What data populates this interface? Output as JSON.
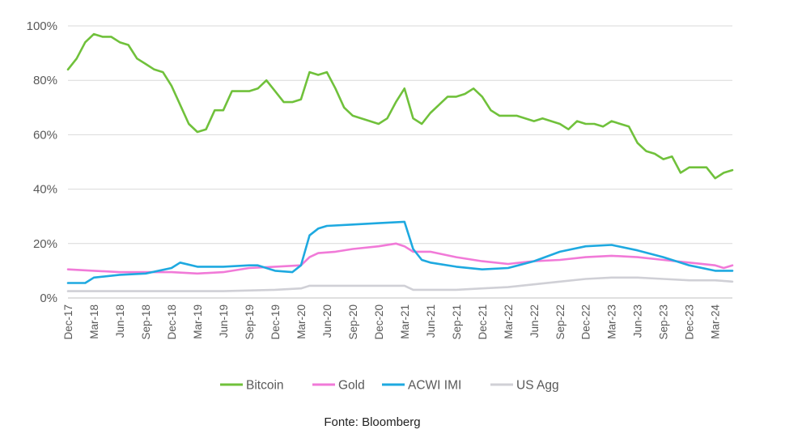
{
  "source_note": "Fonte: Bloomberg",
  "colors": {
    "Bitcoin": "#70c13b",
    "Gold": "#f17ad8",
    "ACWI IMI": "#1ea9e0",
    "US Agg": "#d0d0d6",
    "grid": "#d9d9d9",
    "text": "#595959"
  },
  "chart_data": {
    "type": "line",
    "title": "",
    "xlabel": "",
    "ylabel": "",
    "ylim": [
      0,
      100
    ],
    "y_ticks": [
      0,
      20,
      40,
      60,
      80,
      100
    ],
    "y_tick_labels": [
      "0%",
      "20%",
      "40%",
      "60%",
      "80%",
      "100%"
    ],
    "x_range": [
      "2017-12",
      "2024-05"
    ],
    "x_tick_labels": [
      "Dec-17",
      "Mar-18",
      "Jun-18",
      "Sep-18",
      "Dec-18",
      "Mar-19",
      "Jun-19",
      "Sep-19",
      "Dec-19",
      "Mar-20",
      "Jun-20",
      "Sep-20",
      "Dec-20",
      "Mar-21",
      "Jun-21",
      "Sep-21",
      "Dec-21",
      "Mar-22",
      "Jun-22",
      "Sep-22",
      "Dec-22",
      "Mar-23",
      "Jun-23",
      "Sep-23",
      "Dec-23",
      "Mar-24"
    ],
    "grid": "horizontal",
    "legend_position": "bottom",
    "series": [
      {
        "name": "Bitcoin",
        "points": [
          [
            "2017-12",
            84
          ],
          [
            "2018-01",
            88
          ],
          [
            "2018-02",
            94
          ],
          [
            "2018-03",
            97
          ],
          [
            "2018-04",
            96
          ],
          [
            "2018-05",
            96
          ],
          [
            "2018-06",
            94
          ],
          [
            "2018-07",
            93
          ],
          [
            "2018-08",
            88
          ],
          [
            "2018-09",
            86
          ],
          [
            "2018-10",
            84
          ],
          [
            "2018-11",
            83
          ],
          [
            "2018-12",
            78
          ],
          [
            "2019-01",
            71
          ],
          [
            "2019-02",
            64
          ],
          [
            "2019-03",
            61
          ],
          [
            "2019-04",
            62
          ],
          [
            "2019-05",
            69
          ],
          [
            "2019-06",
            69
          ],
          [
            "2019-07",
            76
          ],
          [
            "2019-08",
            76
          ],
          [
            "2019-09",
            76
          ],
          [
            "2019-10",
            77
          ],
          [
            "2019-11",
            80
          ],
          [
            "2019-12",
            76
          ],
          [
            "2020-01",
            72
          ],
          [
            "2020-02",
            72
          ],
          [
            "2020-03",
            73
          ],
          [
            "2020-04",
            83
          ],
          [
            "2020-05",
            82
          ],
          [
            "2020-06",
            83
          ],
          [
            "2020-07",
            77
          ],
          [
            "2020-08",
            70
          ],
          [
            "2020-09",
            67
          ],
          [
            "2020-10",
            66
          ],
          [
            "2020-11",
            65
          ],
          [
            "2020-12",
            64
          ],
          [
            "2021-01",
            66
          ],
          [
            "2021-02",
            72
          ],
          [
            "2021-03",
            77
          ],
          [
            "2021-04",
            66
          ],
          [
            "2021-05",
            64
          ],
          [
            "2021-06",
            68
          ],
          [
            "2021-07",
            71
          ],
          [
            "2021-08",
            74
          ],
          [
            "2021-09",
            74
          ],
          [
            "2021-10",
            75
          ],
          [
            "2021-11",
            77
          ],
          [
            "2021-12",
            74
          ],
          [
            "2022-01",
            69
          ],
          [
            "2022-02",
            67
          ],
          [
            "2022-03",
            67
          ],
          [
            "2022-04",
            67
          ],
          [
            "2022-05",
            66
          ],
          [
            "2022-06",
            65
          ],
          [
            "2022-07",
            66
          ],
          [
            "2022-08",
            65
          ],
          [
            "2022-09",
            64
          ],
          [
            "2022-10",
            62
          ],
          [
            "2022-11",
            65
          ],
          [
            "2022-12",
            64
          ],
          [
            "2023-01",
            64
          ],
          [
            "2023-02",
            63
          ],
          [
            "2023-03",
            65
          ],
          [
            "2023-04",
            64
          ],
          [
            "2023-05",
            63
          ],
          [
            "2023-06",
            57
          ],
          [
            "2023-07",
            54
          ],
          [
            "2023-08",
            53
          ],
          [
            "2023-09",
            51
          ],
          [
            "2023-10",
            52
          ],
          [
            "2023-11",
            46
          ],
          [
            "2023-12",
            48
          ],
          [
            "2024-01",
            48
          ],
          [
            "2024-02",
            48
          ],
          [
            "2024-03",
            44
          ],
          [
            "2024-04",
            46
          ],
          [
            "2024-05",
            47
          ]
        ]
      },
      {
        "name": "Gold",
        "points": [
          [
            "2017-12",
            10.5
          ],
          [
            "2018-03",
            10
          ],
          [
            "2018-06",
            9.5
          ],
          [
            "2018-09",
            9.5
          ],
          [
            "2018-12",
            9.5
          ],
          [
            "2019-03",
            9
          ],
          [
            "2019-06",
            9.5
          ],
          [
            "2019-09",
            11
          ],
          [
            "2019-12",
            11.5
          ],
          [
            "2020-03",
            12
          ],
          [
            "2020-04",
            15
          ],
          [
            "2020-05",
            16.5
          ],
          [
            "2020-07",
            17
          ],
          [
            "2020-09",
            18
          ],
          [
            "2020-12",
            19
          ],
          [
            "2021-02",
            20
          ],
          [
            "2021-03",
            19
          ],
          [
            "2021-04",
            17
          ],
          [
            "2021-06",
            17
          ],
          [
            "2021-09",
            15
          ],
          [
            "2021-12",
            13.5
          ],
          [
            "2022-03",
            12.5
          ],
          [
            "2022-06",
            13.5
          ],
          [
            "2022-09",
            14
          ],
          [
            "2022-12",
            15
          ],
          [
            "2023-03",
            15.5
          ],
          [
            "2023-06",
            15
          ],
          [
            "2023-09",
            14
          ],
          [
            "2023-12",
            13
          ],
          [
            "2024-03",
            12
          ],
          [
            "2024-04",
            11
          ],
          [
            "2024-05",
            12
          ]
        ]
      },
      {
        "name": "ACWI IMI",
        "points": [
          [
            "2017-12",
            5.5
          ],
          [
            "2018-02",
            5.5
          ],
          [
            "2018-03",
            7.5
          ],
          [
            "2018-06",
            8.5
          ],
          [
            "2018-09",
            9
          ],
          [
            "2018-12",
            11
          ],
          [
            "2019-01",
            13
          ],
          [
            "2019-03",
            11.5
          ],
          [
            "2019-06",
            11.5
          ],
          [
            "2019-09",
            12
          ],
          [
            "2019-10",
            12
          ],
          [
            "2019-12",
            10
          ],
          [
            "2020-02",
            9.5
          ],
          [
            "2020-03",
            12
          ],
          [
            "2020-04",
            23
          ],
          [
            "2020-05",
            25.5
          ],
          [
            "2020-06",
            26.5
          ],
          [
            "2020-09",
            27
          ],
          [
            "2020-12",
            27.5
          ],
          [
            "2021-03",
            28
          ],
          [
            "2021-04",
            18
          ],
          [
            "2021-05",
            14
          ],
          [
            "2021-06",
            13
          ],
          [
            "2021-09",
            11.5
          ],
          [
            "2021-12",
            10.5
          ],
          [
            "2022-03",
            11
          ],
          [
            "2022-06",
            13.5
          ],
          [
            "2022-09",
            17
          ],
          [
            "2022-12",
            19
          ],
          [
            "2023-03",
            19.5
          ],
          [
            "2023-06",
            17.5
          ],
          [
            "2023-09",
            15
          ],
          [
            "2023-12",
            12
          ],
          [
            "2024-03",
            10
          ],
          [
            "2024-05",
            10
          ]
        ]
      },
      {
        "name": "US Agg",
        "points": [
          [
            "2017-12",
            2.5
          ],
          [
            "2018-06",
            2.5
          ],
          [
            "2018-12",
            2.5
          ],
          [
            "2019-06",
            2.5
          ],
          [
            "2019-12",
            3
          ],
          [
            "2020-03",
            3.5
          ],
          [
            "2020-04",
            4.5
          ],
          [
            "2020-12",
            4.5
          ],
          [
            "2021-03",
            4.5
          ],
          [
            "2021-04",
            3
          ],
          [
            "2021-09",
            3
          ],
          [
            "2021-12",
            3.5
          ],
          [
            "2022-03",
            4
          ],
          [
            "2022-06",
            5
          ],
          [
            "2022-09",
            6
          ],
          [
            "2022-12",
            7
          ],
          [
            "2023-03",
            7.5
          ],
          [
            "2023-06",
            7.5
          ],
          [
            "2023-09",
            7
          ],
          [
            "2023-12",
            6.5
          ],
          [
            "2024-03",
            6.5
          ],
          [
            "2024-05",
            6
          ]
        ]
      }
    ]
  }
}
